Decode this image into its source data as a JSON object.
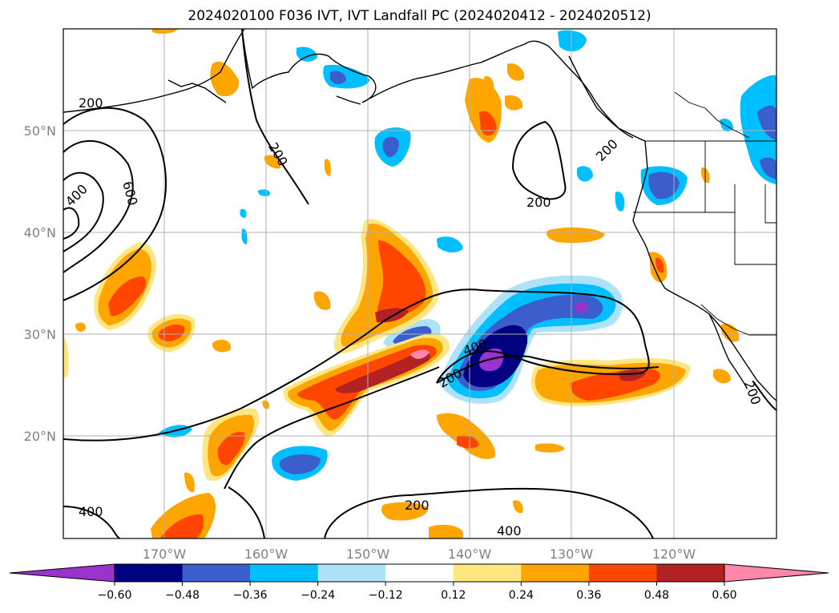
{
  "title": "2024020100 F036 IVT, IVT Landfall PC (2024020412 - 2024020512)",
  "map": {
    "lat_ticks": [
      "50°N",
      "40°N",
      "30°N",
      "20°N"
    ],
    "lon_ticks": [
      "170°W",
      "160°W",
      "150°W",
      "140°W",
      "130°W",
      "120°W"
    ],
    "ivt_contour_labels": [
      "200",
      "400",
      "600",
      "200",
      "200",
      "200",
      "400",
      "200",
      "200",
      "400",
      "400",
      "200"
    ]
  },
  "colorbar": {
    "ticks": [
      "−0.60",
      "−0.48",
      "−0.36",
      "−0.24",
      "−0.12",
      "0.12",
      "0.24",
      "0.36",
      "0.48",
      "0.60"
    ],
    "colors": [
      "#9933cc",
      "#000080",
      "#3a5fcd",
      "#00bfff",
      "#aee2f8",
      "#ffffff",
      "#ffe680",
      "#ffa500",
      "#ff4500",
      "#b22222",
      "#ff88aa"
    ]
  }
}
